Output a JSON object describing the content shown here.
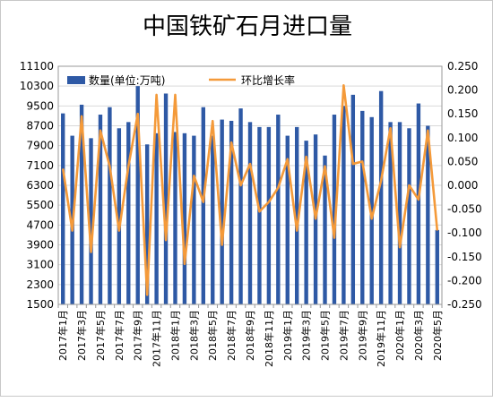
{
  "chart_data": {
    "type": "bar",
    "title": "中国铁矿石月进口量",
    "legend": [
      {
        "name": "数量(单位:万吨)",
        "color": "#2E59A5"
      },
      {
        "name": "环比增长率",
        "color": "#F49A3A"
      }
    ],
    "legend_position": "top-left",
    "grid": true,
    "y_left": {
      "min": 1500,
      "max": 11100,
      "ticks": [
        "1500",
        "2300",
        "3100",
        "3900",
        "4700",
        "5500",
        "6300",
        "7100",
        "7900",
        "8700",
        "9500",
        "10300",
        "11100"
      ]
    },
    "y_right": {
      "min": -0.25,
      "max": 0.25,
      "ticks": [
        "-0.250",
        "-0.200",
        "-0.150",
        "-0.100",
        "-0.050",
        "0.000",
        "0.050",
        "0.100",
        "0.150",
        "0.200",
        "0.250"
      ]
    },
    "x_tick_labels": [
      "2017年1月",
      "2017年3月",
      "2017年5月",
      "2017年7月",
      "2017年9月",
      "2017年11月",
      "2018年1月",
      "2018年3月",
      "2018年5月",
      "2018年7月",
      "2018年9月",
      "2018年11月",
      "2019年1月",
      "2019年3月",
      "2019年5月",
      "2019年7月",
      "2019年9月",
      "2019年11月",
      "2020年1月",
      "2020年3月",
      "2020年5月"
    ],
    "categories": [
      "2017-01",
      "2017-02",
      "2017-03",
      "2017-04",
      "2017-05",
      "2017-06",
      "2017-07",
      "2017-08",
      "2017-09",
      "2017-10",
      "2017-11",
      "2017-12",
      "2018-01",
      "2018-02",
      "2018-03",
      "2018-04",
      "2018-05",
      "2018-06",
      "2018-07",
      "2018-08",
      "2018-09",
      "2018-10",
      "2018-11",
      "2018-12",
      "2019-01",
      "2019-02",
      "2019-03",
      "2019-04",
      "2019-05",
      "2019-06",
      "2019-07",
      "2019-08",
      "2019-09",
      "2019-10",
      "2019-11",
      "2019-12",
      "2020-01",
      "2020-02",
      "2020-03",
      "2020-04",
      "2020-05"
    ],
    "series": [
      {
        "name": "数量(单位:万吨)",
        "axis": "left",
        "values": [
          9200,
          8300,
          9550,
          8200,
          9150,
          9450,
          8600,
          8850,
          10300,
          7950,
          8400,
          10000,
          8450,
          8400,
          8300,
          9450,
          8300,
          8950,
          8900,
          9400,
          8850,
          8650,
          8650,
          9150,
          8300,
          8650,
          8100,
          8350,
          7500,
          9150,
          9500,
          9950,
          9300,
          9050,
          10100,
          8850,
          8850,
          8600,
          9600,
          8700,
          4500
        ]
      },
      {
        "name": "环比增长率",
        "axis": "right",
        "values": [
          0.035,
          -0.095,
          0.145,
          -0.14,
          0.115,
          0.04,
          -0.095,
          0.04,
          0.15,
          -0.23,
          0.19,
          -0.115,
          0.19,
          -0.165,
          0.02,
          -0.035,
          0.135,
          -0.125,
          0.09,
          0.0,
          0.045,
          -0.055,
          -0.035,
          -0.005,
          0.055,
          -0.095,
          0.06,
          -0.07,
          0.04,
          -0.11,
          0.21,
          0.045,
          0.05,
          -0.07,
          0.01,
          0.12,
          -0.13,
          0.0,
          -0.03,
          0.115,
          -0.095
        ]
      }
    ]
  }
}
